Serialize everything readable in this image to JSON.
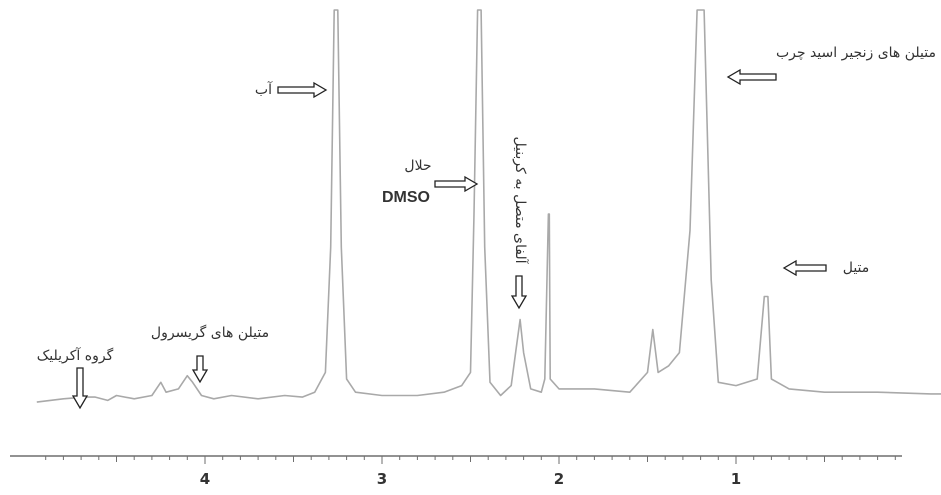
{
  "chart_data": {
    "type": "line",
    "title": "",
    "xlabel": "",
    "ylabel": "",
    "x_axis_reversed": true,
    "xlim": [
      4.95,
      -0.2
    ],
    "x_ticks": [
      "4",
      "3",
      "2",
      "1"
    ],
    "x_tick_values": [
      4,
      3,
      2,
      1
    ],
    "grid": false,
    "series": [
      {
        "points": [
          [
            4.95,
            0.03
          ],
          [
            4.8,
            0.04
          ],
          [
            4.68,
            0.045
          ],
          [
            4.62,
            0.045
          ],
          [
            4.55,
            0.035
          ],
          [
            4.5,
            0.05
          ],
          [
            4.4,
            0.04
          ],
          [
            4.3,
            0.05
          ],
          [
            4.25,
            0.09
          ],
          [
            4.22,
            0.06
          ],
          [
            4.15,
            0.07
          ],
          [
            4.1,
            0.11
          ],
          [
            4.07,
            0.09
          ],
          [
            4.02,
            0.05
          ],
          [
            3.95,
            0.04
          ],
          [
            3.85,
            0.05
          ],
          [
            3.7,
            0.04
          ],
          [
            3.55,
            0.05
          ],
          [
            3.45,
            0.045
          ],
          [
            3.38,
            0.06
          ],
          [
            3.32,
            0.12
          ],
          [
            3.29,
            0.5
          ],
          [
            3.27,
            1.3
          ],
          [
            3.25,
            1.3
          ],
          [
            3.23,
            0.5
          ],
          [
            3.2,
            0.1
          ],
          [
            3.15,
            0.06
          ],
          [
            3.0,
            0.05
          ],
          [
            2.8,
            0.05
          ],
          [
            2.65,
            0.06
          ],
          [
            2.55,
            0.08
          ],
          [
            2.5,
            0.12
          ],
          [
            2.48,
            0.6
          ],
          [
            2.46,
            1.3
          ],
          [
            2.44,
            1.3
          ],
          [
            2.42,
            0.5
          ],
          [
            2.39,
            0.09
          ],
          [
            2.33,
            0.05
          ],
          [
            2.27,
            0.08
          ],
          [
            2.24,
            0.2
          ],
          [
            2.22,
            0.28
          ],
          [
            2.2,
            0.18
          ],
          [
            2.16,
            0.07
          ],
          [
            2.1,
            0.06
          ],
          [
            2.08,
            0.1
          ],
          [
            2.06,
            0.6
          ],
          [
            2.055,
            0.6
          ],
          [
            2.05,
            0.1
          ],
          [
            2.0,
            0.07
          ],
          [
            1.8,
            0.07
          ],
          [
            1.6,
            0.06
          ],
          [
            1.5,
            0.12
          ],
          [
            1.47,
            0.25
          ],
          [
            1.44,
            0.12
          ],
          [
            1.38,
            0.14
          ],
          [
            1.32,
            0.18
          ],
          [
            1.26,
            0.55
          ],
          [
            1.22,
            1.3
          ],
          [
            1.18,
            1.3
          ],
          [
            1.14,
            0.4
          ],
          [
            1.1,
            0.09
          ],
          [
            1.0,
            0.08
          ],
          [
            0.88,
            0.1
          ],
          [
            0.84,
            0.35
          ],
          [
            0.82,
            0.35
          ],
          [
            0.8,
            0.1
          ],
          [
            0.7,
            0.07
          ],
          [
            0.5,
            0.06
          ],
          [
            0.2,
            0.06
          ],
          [
            -0.1,
            0.055
          ],
          [
            -0.2,
            0.055
          ]
        ]
      }
    ],
    "annotations": [
      {
        "id": "water",
        "text": "آب",
        "x": 3.26
      },
      {
        "id": "dmso_solvent",
        "text": "حلال",
        "x": 2.46
      },
      {
        "id": "dmso_name",
        "text": "DMSO",
        "x": 2.46
      },
      {
        "id": "alpha_carbonyl",
        "text": "آلفای متصل به کربنیل",
        "x": 2.23
      },
      {
        "id": "fatty_acid_methylene",
        "text": "متیلن های زنجیر اسید چرب",
        "x": 1.2
      },
      {
        "id": "methyl",
        "text": "متیل",
        "x": 0.83
      },
      {
        "id": "glycerol_methylene",
        "text": "متیلن های گریسرول",
        "x": 4.05
      },
      {
        "id": "acrylic_group",
        "text": "گروه آکریلیک",
        "x": 4.7
      }
    ],
    "colors": {
      "line": "#a9a9a9",
      "axis": "#6e6e6e",
      "text": "#333333"
    }
  }
}
